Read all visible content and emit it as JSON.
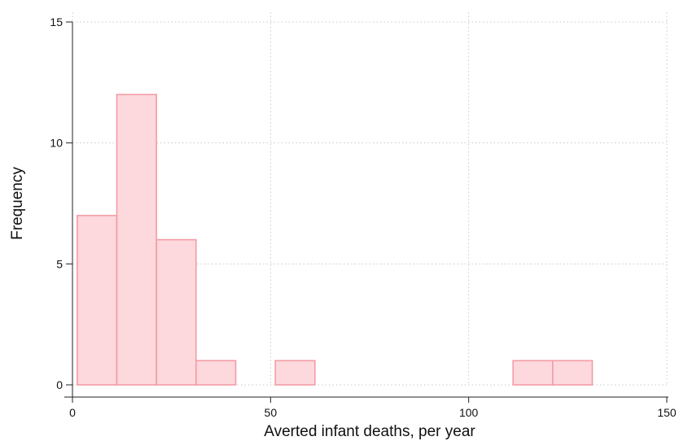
{
  "chart_data": {
    "type": "bar",
    "subtype": "histogram",
    "xlabel": "Averted infant deaths, per year",
    "ylabel": "Frequency",
    "xlim": [
      0,
      150
    ],
    "ylim": [
      0,
      15
    ],
    "x_ticks": [
      0,
      50,
      100,
      150
    ],
    "y_ticks": [
      0,
      5,
      10,
      15
    ],
    "bin_width": 10,
    "bins": [
      {
        "start": 1.2,
        "end": 11.2,
        "count": 7
      },
      {
        "start": 11.2,
        "end": 21.2,
        "count": 12
      },
      {
        "start": 21.2,
        "end": 31.2,
        "count": 6
      },
      {
        "start": 31.2,
        "end": 41.2,
        "count": 1
      },
      {
        "start": 41.2,
        "end": 51.2,
        "count": 0
      },
      {
        "start": 51.2,
        "end": 61.2,
        "count": 1
      },
      {
        "start": 61.2,
        "end": 71.2,
        "count": 0
      },
      {
        "start": 71.2,
        "end": 81.2,
        "count": 0
      },
      {
        "start": 81.2,
        "end": 91.2,
        "count": 0
      },
      {
        "start": 91.2,
        "end": 101.2,
        "count": 0
      },
      {
        "start": 101.2,
        "end": 111.2,
        "count": 0
      },
      {
        "start": 111.2,
        "end": 121.2,
        "count": 1
      },
      {
        "start": 121.2,
        "end": 131.2,
        "count": 1
      }
    ],
    "grid": true,
    "colors": {
      "bar_fill": "#fdd8dd",
      "bar_stroke": "#f39ca5",
      "grid": "#c9c9c9",
      "axis": "#222222"
    }
  }
}
